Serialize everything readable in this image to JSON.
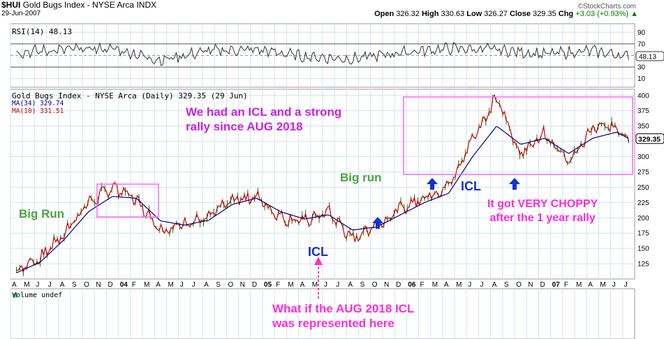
{
  "header": {
    "symbol": "$HUI",
    "name": "Gold Bugs Index - NYSE Arca",
    "exchange": "INDX",
    "date": "29-Jun-2007",
    "source": "©StockCharts.com",
    "open_label": "Open",
    "open": "326.32",
    "high_label": "High",
    "high": "330.63",
    "low_label": "Low",
    "low": "326.27",
    "close_label": "Close",
    "close": "329.35",
    "chg_label": "Chg",
    "chg": "+3.03 (+0.93%)",
    "chg_arrow": "▲"
  },
  "rsi": {
    "label": "RSI(14) 48.13",
    "value": "48.13",
    "ticks": [
      "90",
      "70",
      "50",
      "30",
      "10"
    ]
  },
  "main": {
    "title": "Gold Bugs Index - NYSE Arca (Daily) 329.35 (29 Jun)",
    "ma34": "MA(34) 329.74",
    "ma10": "MA(10) 331.51",
    "price_tag": "329.35",
    "ticks": [
      "400",
      "375",
      "350",
      "325",
      "300",
      "275",
      "250",
      "225",
      "200",
      "175",
      "150",
      "125"
    ]
  },
  "volume": {
    "label": "Volume undef"
  },
  "annotations": {
    "icl_text_1": "We had an ICL and a strong",
    "icl_text_2": "rally since AUG 2018",
    "big_run_left": "Big Run",
    "big_run_mid": "Big run",
    "icl_mid": "ICL",
    "icl_right": "ICL",
    "choppy_1": "It got VERY CHOPPY",
    "choppy_2": "after the 1 year rally",
    "whatif_1": "What if the AUG 2018 ICL",
    "whatif_2": "was represented here"
  },
  "colors": {
    "price": "#d00000",
    "bars": "#008000",
    "ma34": "#000080",
    "ma10": "#cc0000",
    "box": "#ff66ff",
    "annotation_pink": "#ff2bd6",
    "annotation_purple": "#cc22dd",
    "annotation_green": "#4aa340",
    "annotation_blue": "#1330d8",
    "grid": "#cfe3ee"
  },
  "chart_data": {
    "type": "line",
    "title": "Gold Bugs Index - NYSE Arca (Daily)",
    "x_axis_labels": [
      "A",
      "M",
      "J",
      "J",
      "A",
      "S",
      "O",
      "N",
      "D",
      "04",
      "F",
      "M",
      "A",
      "M",
      "J",
      "J",
      "A",
      "S",
      "O",
      "N",
      "D",
      "05",
      "F",
      "M",
      "A",
      "M",
      "J",
      "J",
      "A",
      "S",
      "O",
      "N",
      "D",
      "06",
      "F",
      "M",
      "A",
      "M",
      "J",
      "J",
      "A",
      "S",
      "O",
      "N",
      "D",
      "07",
      "F",
      "M",
      "A",
      "M",
      "J",
      "J"
    ],
    "ylim": [
      100,
      410
    ],
    "series": [
      {
        "name": "Gold Bugs Index - NYSE Arca",
        "x": [
          0,
          2,
          4,
          6,
          8,
          10,
          12,
          14,
          16,
          18,
          20,
          22,
          24,
          26,
          28,
          30,
          32,
          34,
          36,
          38,
          40,
          42,
          44,
          46,
          48,
          50,
          51
        ],
        "values": [
          115,
          135,
          175,
          225,
          250,
          230,
          180,
          190,
          200,
          230,
          235,
          200,
          195,
          210,
          165,
          190,
          215,
          235,
          250,
          330,
          395,
          305,
          340,
          290,
          345,
          350,
          329.35
        ]
      },
      {
        "name": "MA(34)",
        "x": [
          0,
          2,
          4,
          6,
          8,
          10,
          12,
          14,
          16,
          18,
          20,
          22,
          24,
          26,
          28,
          30,
          32,
          34,
          36,
          38,
          40,
          42,
          44,
          46,
          48,
          50,
          51
        ],
        "values": [
          110,
          128,
          165,
          210,
          235,
          232,
          195,
          188,
          196,
          222,
          232,
          210,
          198,
          205,
          180,
          185,
          205,
          225,
          240,
          300,
          350,
          320,
          330,
          305,
          330,
          340,
          329.74
        ]
      }
    ],
    "rsi": {
      "name": "RSI(14)",
      "ylim": [
        0,
        100
      ],
      "x": [
        0,
        4,
        8,
        12,
        16,
        20,
        24,
        28,
        32,
        36,
        40,
        44,
        48,
        51
      ],
      "values": [
        55,
        60,
        62,
        42,
        58,
        60,
        48,
        44,
        55,
        62,
        60,
        52,
        58,
        48.13
      ]
    },
    "legend": "top-left"
  }
}
